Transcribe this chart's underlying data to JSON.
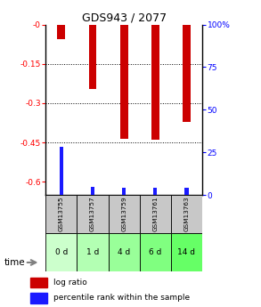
{
  "title": "GDS943 / 2077",
  "samples": [
    "GSM13755",
    "GSM13757",
    "GSM13759",
    "GSM13761",
    "GSM13763"
  ],
  "time_labels": [
    "0 d",
    "1 d",
    "4 d",
    "6 d",
    "14 d"
  ],
  "log_ratios": [
    -0.055,
    -0.245,
    -0.435,
    -0.44,
    -0.37
  ],
  "percentile_ranks": [
    28,
    5,
    4,
    4,
    4
  ],
  "ylim": [
    -0.65,
    0.0
  ],
  "yticks": [
    0.0,
    -0.15,
    -0.3,
    -0.45,
    -0.6
  ],
  "ytick_labels": [
    "-0",
    "-0.15",
    "-0.3",
    "-0.45",
    "-0.6"
  ],
  "right_yticks_pct": [
    0,
    25,
    50,
    75,
    100
  ],
  "right_ytick_labels": [
    "0",
    "25",
    "50",
    "75",
    "100%"
  ],
  "bar_color_red": "#cc0000",
  "bar_color_blue": "#1a1aff",
  "gsm_bg_color": "#c8c8c8",
  "time_bg_colors": [
    "#ccffcc",
    "#b3ffb3",
    "#99ff99",
    "#80ff80",
    "#66ff66"
  ],
  "bar_width": 0.25,
  "blue_bar_width": 0.12
}
